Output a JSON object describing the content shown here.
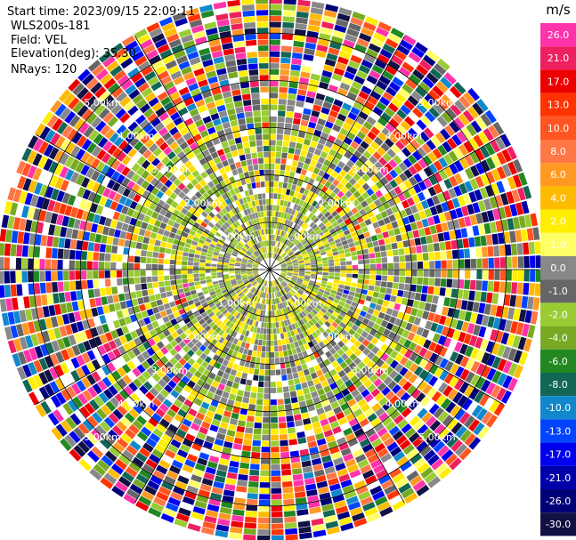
{
  "header": {
    "start_time": "Start time: 2023/09/15 22:09:11",
    "instrument": "WLS200s-181",
    "field": "Field: VEL",
    "elevation": "Elevation(deg): 35.30",
    "nrays": "NRays: 120"
  },
  "chart_data": {
    "type": "heatmap",
    "projection": "polar-ppi",
    "field": "VEL",
    "nrays": 120,
    "range_rings_km": [
      1.0,
      2.0,
      3.0,
      4.0,
      5.0
    ],
    "ring_label_text": [
      "1.00km",
      "2.00km",
      "3.00km",
      "4.00km",
      "5.00km"
    ],
    "max_range_km": 5.7,
    "radial_lines_deg": [
      0,
      30,
      60,
      90,
      120,
      150,
      180,
      210,
      240,
      270,
      300,
      330
    ],
    "colorbar": {
      "unit": "m/s",
      "ticks": [
        "26.0",
        "21.0",
        "17.0",
        "13.0",
        "10.0",
        "8.0",
        "6.0",
        "4.0",
        "2.0",
        "1.0",
        "0.0",
        "-1.0",
        "-2.0",
        "-4.0",
        "-6.0",
        "-8.0",
        "-10.0",
        "-13.0",
        "-17.0",
        "-21.0",
        "-26.0",
        "-30.0"
      ],
      "colors": [
        "#ff33aa",
        "#ee2060",
        "#ee0000",
        "#ff3300",
        "#ff5522",
        "#ff7744",
        "#ff9922",
        "#ffbb00",
        "#ffee00",
        "#ffff66",
        "#888888",
        "#666666",
        "#99cc33",
        "#77aa22",
        "#228822",
        "#116655",
        "#1188cc",
        "#0044ff",
        "#0000ee",
        "#0000aa",
        "#000077",
        "#111144"
      ]
    }
  }
}
